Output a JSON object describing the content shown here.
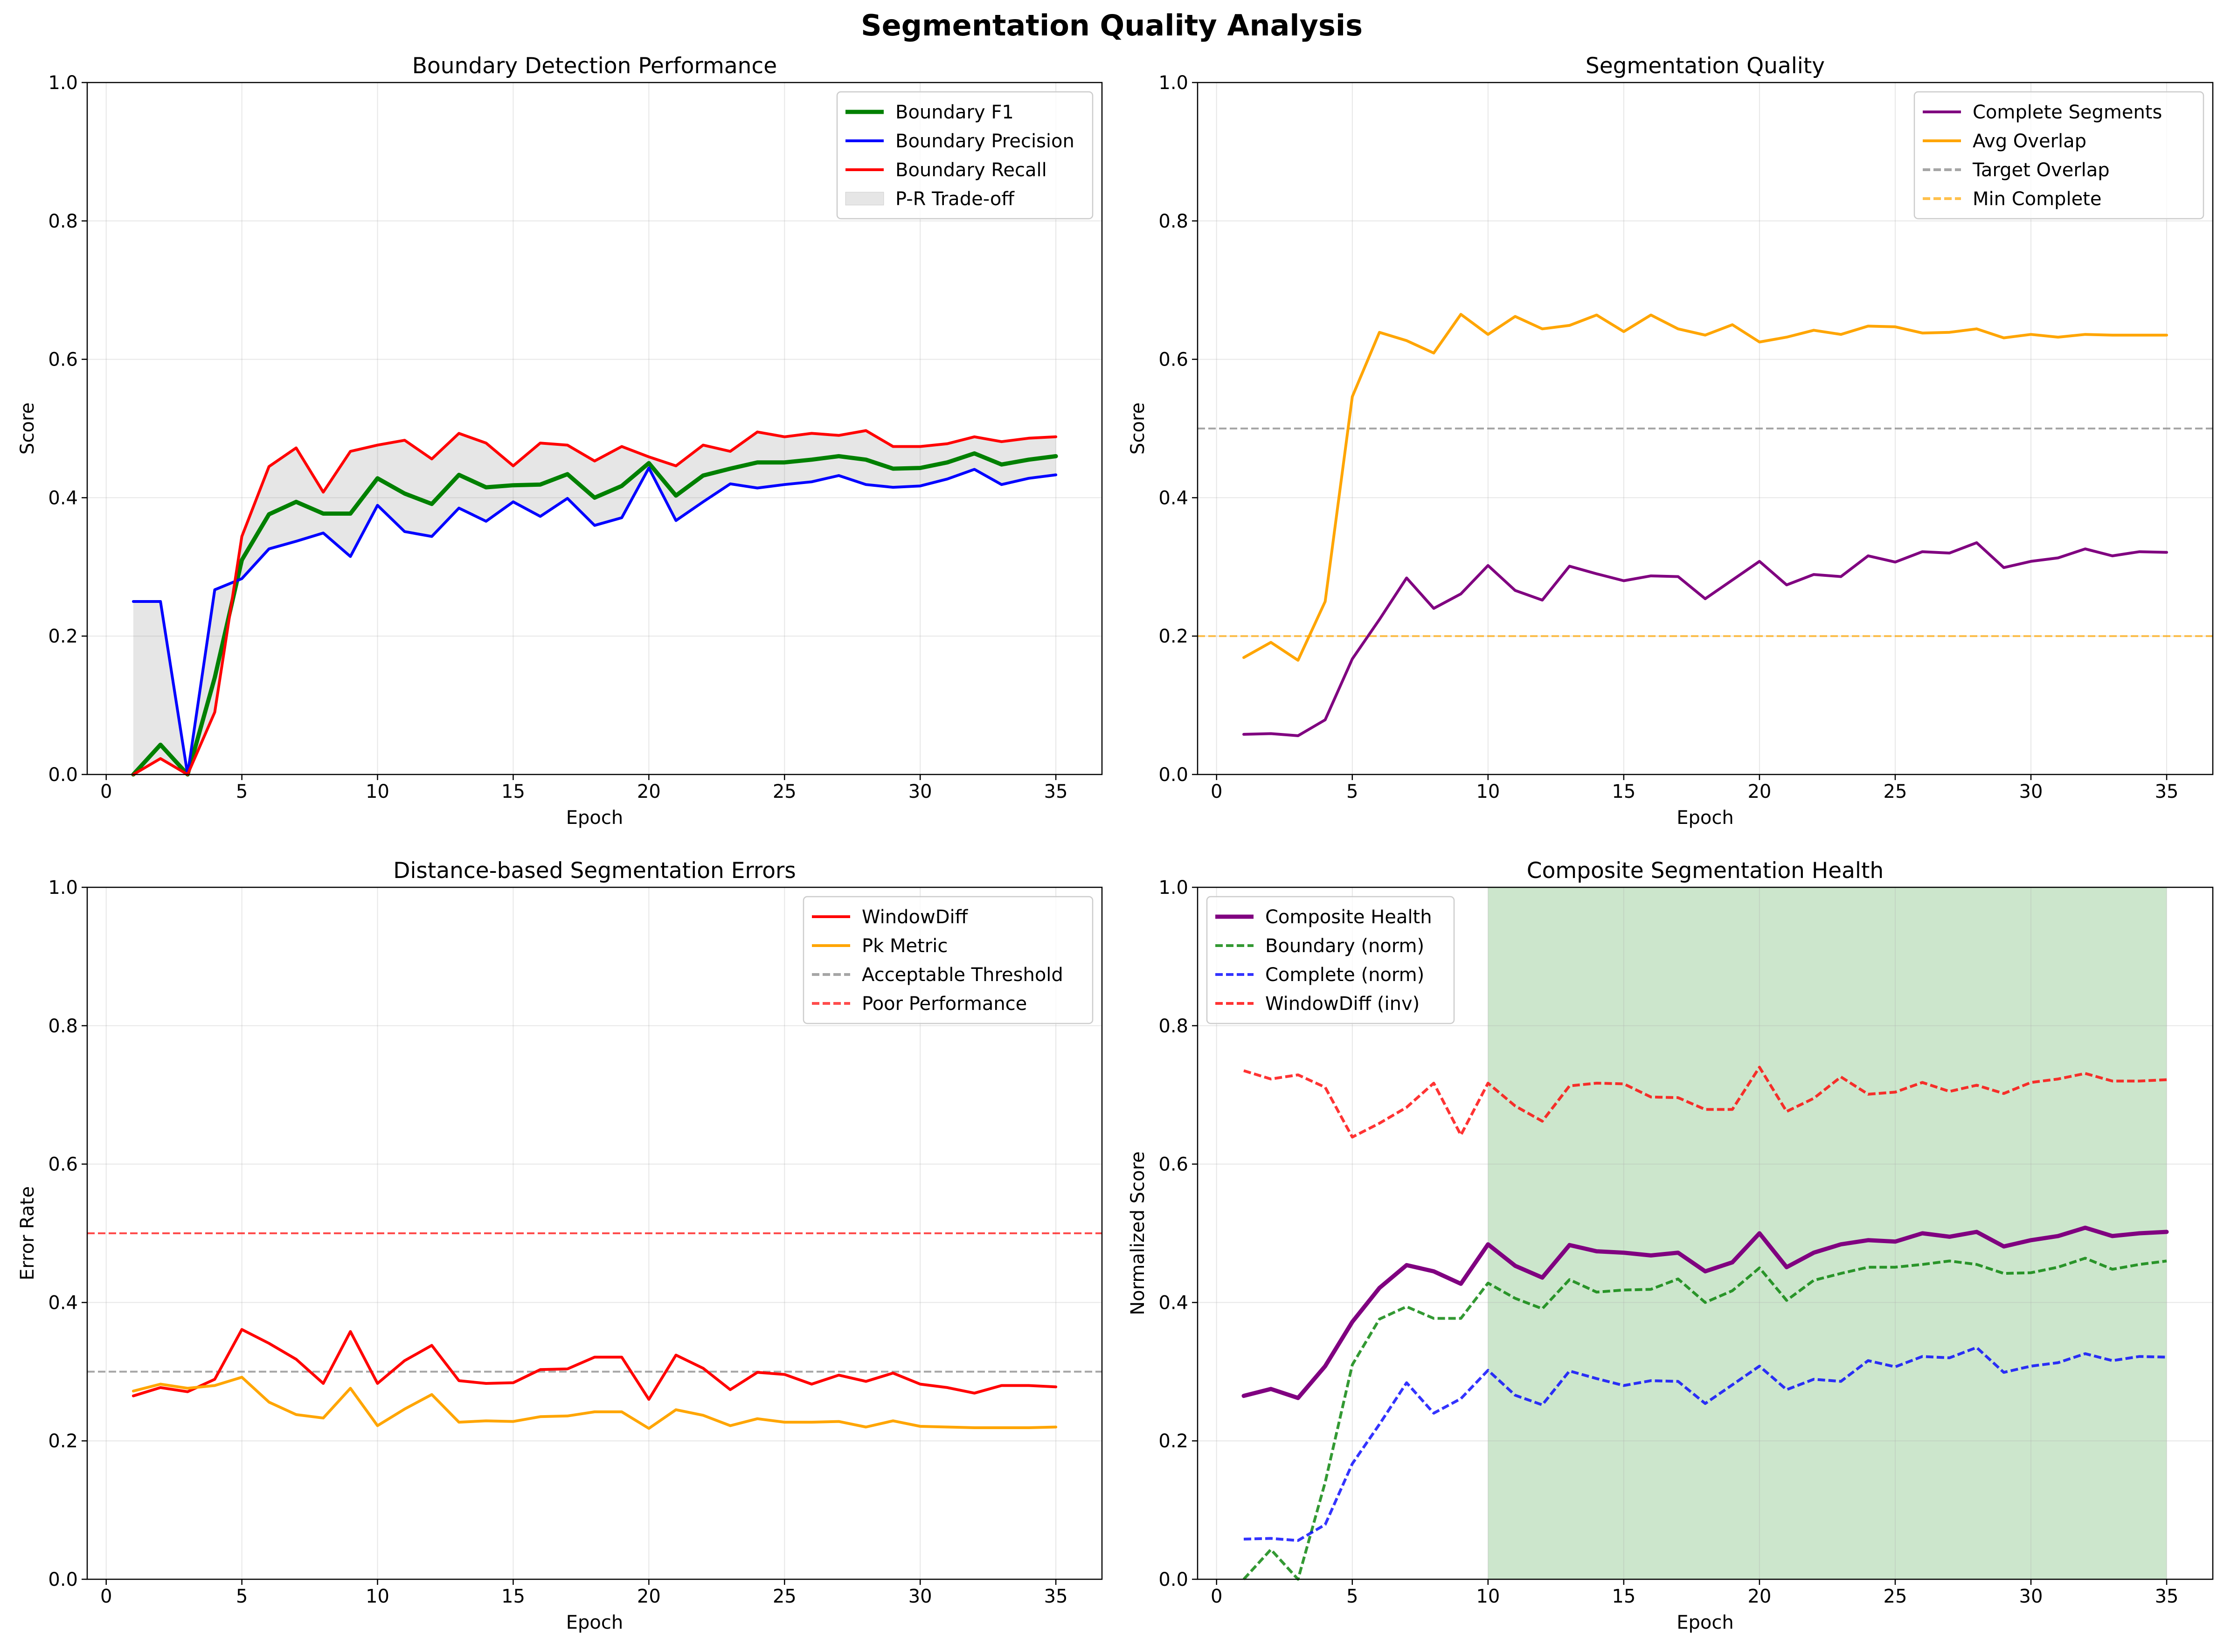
{
  "figure": {
    "suptitle": "Segmentation Quality Analysis"
  },
  "chart_data": [
    {
      "type": "line",
      "title": "Boundary Detection Performance",
      "xlabel": "Epoch",
      "ylabel": "Score",
      "xlim": [
        -0.7,
        36.7
      ],
      "ylim": [
        0,
        1
      ],
      "xticks": [
        0,
        5,
        10,
        15,
        20,
        25,
        30,
        35
      ],
      "yticks": [
        0.0,
        0.2,
        0.4,
        0.6,
        0.8,
        1.0
      ],
      "grid": true,
      "legend_position": "top-right",
      "x": [
        1,
        2,
        3,
        4,
        5,
        6,
        7,
        8,
        9,
        10,
        11,
        12,
        13,
        14,
        15,
        16,
        17,
        18,
        19,
        20,
        21,
        22,
        23,
        24,
        25,
        26,
        27,
        28,
        29,
        30,
        31,
        32,
        33,
        34,
        35
      ],
      "series": [
        {
          "name": "Boundary F1",
          "color": "#008000",
          "dash": "solid",
          "width": 3,
          "values": [
            0.0,
            0.043,
            0.0,
            0.14,
            0.31,
            0.376,
            0.394,
            0.377,
            0.377,
            0.428,
            0.406,
            0.391,
            0.433,
            0.415,
            0.418,
            0.419,
            0.434,
            0.4,
            0.417,
            0.45,
            0.403,
            0.432,
            0.442,
            0.451,
            0.451,
            0.455,
            0.46,
            0.455,
            0.442,
            0.443,
            0.451,
            0.464,
            0.448,
            0.455,
            0.46
          ]
        },
        {
          "name": "Boundary Precision",
          "color": "#0000ff",
          "dash": "solid",
          "width": 2,
          "values": [
            0.25,
            0.25,
            0.0,
            0.267,
            0.283,
            0.326,
            0.337,
            0.349,
            0.315,
            0.389,
            0.351,
            0.344,
            0.385,
            0.366,
            0.394,
            0.373,
            0.399,
            0.36,
            0.371,
            0.443,
            0.367,
            0.394,
            0.42,
            0.414,
            0.419,
            0.423,
            0.432,
            0.419,
            0.415,
            0.417,
            0.427,
            0.441,
            0.419,
            0.428,
            0.433
          ]
        },
        {
          "name": "Boundary Recall",
          "color": "#ff0000",
          "dash": "solid",
          "width": 2,
          "values": [
            0.0,
            0.023,
            0.0,
            0.09,
            0.344,
            0.445,
            0.472,
            0.408,
            0.467,
            0.476,
            0.483,
            0.456,
            0.493,
            0.479,
            0.446,
            0.479,
            0.476,
            0.453,
            0.474,
            0.459,
            0.446,
            0.476,
            0.467,
            0.495,
            0.488,
            0.493,
            0.49,
            0.497,
            0.474,
            0.474,
            0.478,
            0.488,
            0.481,
            0.486,
            0.488
          ]
        }
      ],
      "fill_between": {
        "name": "P-R Trade-off",
        "between": [
          "Boundary Precision",
          "Boundary Recall"
        ],
        "color": "#808080",
        "opacity": 0.2
      }
    },
    {
      "type": "line",
      "title": "Segmentation Quality",
      "xlabel": "Epoch",
      "ylabel": "Score",
      "xlim": [
        -0.7,
        36.7
      ],
      "ylim": [
        0,
        1
      ],
      "xticks": [
        0,
        5,
        10,
        15,
        20,
        25,
        30,
        35
      ],
      "yticks": [
        0.0,
        0.2,
        0.4,
        0.6,
        0.8,
        1.0
      ],
      "grid": true,
      "legend_position": "top-right",
      "x": [
        1,
        2,
        3,
        4,
        5,
        6,
        7,
        8,
        9,
        10,
        11,
        12,
        13,
        14,
        15,
        16,
        17,
        18,
        19,
        20,
        21,
        22,
        23,
        24,
        25,
        26,
        27,
        28,
        29,
        30,
        31,
        32,
        33,
        34,
        35
      ],
      "series": [
        {
          "name": "Complete Segments",
          "color": "#800080",
          "dash": "solid",
          "width": 2,
          "values": [
            0.058,
            0.059,
            0.056,
            0.079,
            0.167,
            0.224,
            0.284,
            0.24,
            0.261,
            0.302,
            0.266,
            0.252,
            0.301,
            0.29,
            0.28,
            0.287,
            0.286,
            0.254,
            0.281,
            0.308,
            0.274,
            0.289,
            0.286,
            0.316,
            0.307,
            0.322,
            0.32,
            0.335,
            0.299,
            0.308,
            0.313,
            0.326,
            0.316,
            0.322,
            0.321
          ]
        },
        {
          "name": "Avg Overlap",
          "color": "#ffa500",
          "dash": "solid",
          "width": 2,
          "values": [
            0.169,
            0.191,
            0.165,
            0.25,
            0.546,
            0.639,
            0.627,
            0.609,
            0.665,
            0.636,
            0.662,
            0.644,
            0.649,
            0.664,
            0.64,
            0.664,
            0.644,
            0.635,
            0.65,
            0.625,
            0.632,
            0.642,
            0.636,
            0.648,
            0.647,
            0.638,
            0.639,
            0.644,
            0.631,
            0.636,
            0.632,
            0.636,
            0.635,
            0.635,
            0.635
          ]
        }
      ],
      "hlines": [
        {
          "name": "Target Overlap",
          "y": 0.5,
          "color": "#808080"
        },
        {
          "name": "Min Complete",
          "y": 0.2,
          "color": "#ffa500"
        }
      ]
    },
    {
      "type": "line",
      "title": "Distance-based Segmentation Errors",
      "xlabel": "Epoch",
      "ylabel": "Error Rate",
      "xlim": [
        -0.7,
        36.7
      ],
      "ylim": [
        0,
        1
      ],
      "xticks": [
        0,
        5,
        10,
        15,
        20,
        25,
        30,
        35
      ],
      "yticks": [
        0.0,
        0.2,
        0.4,
        0.6,
        0.8,
        1.0
      ],
      "grid": true,
      "legend_position": "top-right",
      "x": [
        1,
        2,
        3,
        4,
        5,
        6,
        7,
        8,
        9,
        10,
        11,
        12,
        13,
        14,
        15,
        16,
        17,
        18,
        19,
        20,
        21,
        22,
        23,
        24,
        25,
        26,
        27,
        28,
        29,
        30,
        31,
        32,
        33,
        34,
        35
      ],
      "series": [
        {
          "name": "WindowDiff",
          "color": "#ff0000",
          "dash": "solid",
          "width": 2,
          "values": [
            0.265,
            0.277,
            0.271,
            0.289,
            0.361,
            0.341,
            0.318,
            0.283,
            0.358,
            0.283,
            0.316,
            0.338,
            0.287,
            0.283,
            0.284,
            0.303,
            0.304,
            0.321,
            0.321,
            0.26,
            0.324,
            0.305,
            0.274,
            0.299,
            0.296,
            0.282,
            0.295,
            0.286,
            0.298,
            0.282,
            0.277,
            0.269,
            0.28,
            0.28,
            0.278
          ]
        },
        {
          "name": "Pk Metric",
          "color": "#ffa500",
          "dash": "solid",
          "width": 2,
          "values": [
            0.272,
            0.282,
            0.276,
            0.28,
            0.292,
            0.256,
            0.238,
            0.233,
            0.276,
            0.222,
            0.246,
            0.267,
            0.227,
            0.229,
            0.228,
            0.235,
            0.236,
            0.242,
            0.242,
            0.218,
            0.245,
            0.237,
            0.222,
            0.232,
            0.227,
            0.227,
            0.228,
            0.22,
            0.229,
            0.221,
            0.22,
            0.219,
            0.219,
            0.219,
            0.22
          ]
        }
      ],
      "hlines": [
        {
          "name": "Acceptable Threshold",
          "y": 0.3,
          "color": "#808080"
        },
        {
          "name": "Poor Performance",
          "y": 0.5,
          "color": "#ff0000"
        }
      ]
    },
    {
      "type": "line",
      "title": "Composite Segmentation Health",
      "xlabel": "Epoch",
      "ylabel": "Normalized Score",
      "xlim": [
        -0.7,
        36.7
      ],
      "ylim": [
        0,
        1
      ],
      "xticks": [
        0,
        5,
        10,
        15,
        20,
        25,
        30,
        35
      ],
      "yticks": [
        0.0,
        0.2,
        0.4,
        0.6,
        0.8,
        1.0
      ],
      "grid": true,
      "legend_position": "top-left",
      "shaded_region": {
        "x_start": 10,
        "x_end": 35,
        "color": "#008000",
        "opacity": 0.2
      },
      "x": [
        1,
        2,
        3,
        4,
        5,
        6,
        7,
        8,
        9,
        10,
        11,
        12,
        13,
        14,
        15,
        16,
        17,
        18,
        19,
        20,
        21,
        22,
        23,
        24,
        25,
        26,
        27,
        28,
        29,
        30,
        31,
        32,
        33,
        34,
        35
      ],
      "series": [
        {
          "name": "Composite Health",
          "color": "#800080",
          "dash": "solid",
          "width": 3,
          "values": [
            0.265,
            0.275,
            0.262,
            0.308,
            0.372,
            0.421,
            0.454,
            0.445,
            0.427,
            0.484,
            0.453,
            0.436,
            0.483,
            0.474,
            0.472,
            0.468,
            0.472,
            0.445,
            0.458,
            0.5,
            0.451,
            0.472,
            0.484,
            0.49,
            0.488,
            0.5,
            0.495,
            0.502,
            0.481,
            0.49,
            0.496,
            0.508,
            0.496,
            0.5,
            0.502
          ]
        },
        {
          "name": "Boundary (norm)",
          "color": "#008000",
          "dash": "dashed",
          "width": 2,
          "values": [
            0.0,
            0.043,
            0.0,
            0.14,
            0.31,
            0.376,
            0.394,
            0.377,
            0.377,
            0.428,
            0.406,
            0.391,
            0.433,
            0.415,
            0.418,
            0.419,
            0.434,
            0.4,
            0.417,
            0.45,
            0.403,
            0.432,
            0.442,
            0.451,
            0.451,
            0.455,
            0.46,
            0.455,
            0.442,
            0.443,
            0.451,
            0.464,
            0.448,
            0.455,
            0.46
          ]
        },
        {
          "name": "Complete (norm)",
          "color": "#0000ff",
          "dash": "dashed",
          "width": 2,
          "values": [
            0.058,
            0.059,
            0.056,
            0.079,
            0.167,
            0.224,
            0.284,
            0.24,
            0.261,
            0.302,
            0.266,
            0.252,
            0.301,
            0.29,
            0.28,
            0.287,
            0.286,
            0.254,
            0.281,
            0.308,
            0.274,
            0.289,
            0.286,
            0.316,
            0.307,
            0.322,
            0.32,
            0.335,
            0.299,
            0.308,
            0.313,
            0.326,
            0.316,
            0.322,
            0.321
          ]
        },
        {
          "name": "WindowDiff (inv)",
          "color": "#ff0000",
          "dash": "dashed",
          "width": 2,
          "values": [
            0.735,
            0.723,
            0.729,
            0.711,
            0.639,
            0.659,
            0.682,
            0.717,
            0.642,
            0.717,
            0.684,
            0.662,
            0.713,
            0.717,
            0.716,
            0.697,
            0.696,
            0.679,
            0.679,
            0.74,
            0.676,
            0.695,
            0.726,
            0.701,
            0.704,
            0.718,
            0.705,
            0.714,
            0.702,
            0.718,
            0.723,
            0.731,
            0.72,
            0.72,
            0.722
          ]
        }
      ]
    }
  ]
}
